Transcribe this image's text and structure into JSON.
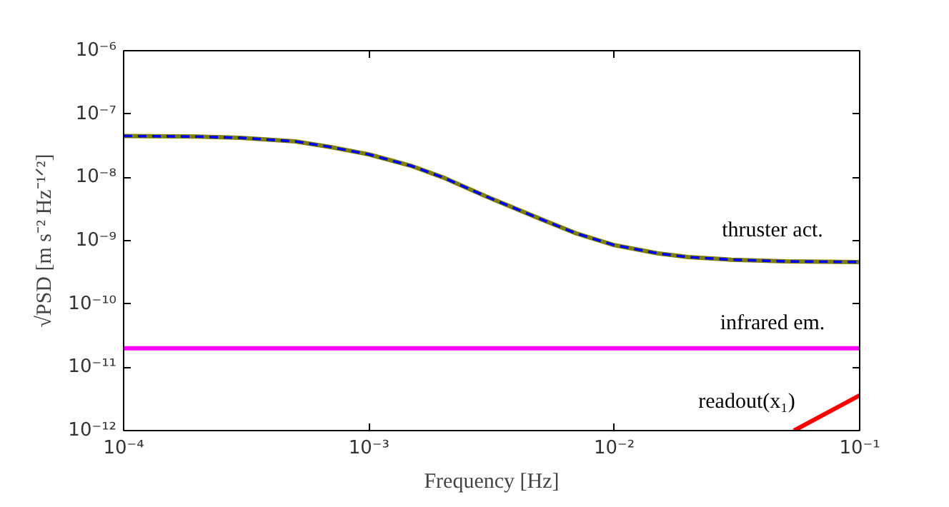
{
  "chart_data": {
    "type": "line",
    "xlabel": "Frequency [Hz]",
    "ylabel": "√PSD [m s⁻² Hz⁻¹ᐟ²]",
    "log": "xy",
    "grid": false,
    "xlim": [
      0.0001,
      0.1
    ],
    "ylim": [
      1e-12,
      1e-06
    ],
    "xticks": [
      {
        "value": 0.0001,
        "label": "10⁻⁴"
      },
      {
        "value": 0.001,
        "label": "10⁻³"
      },
      {
        "value": 0.01,
        "label": "10⁻²"
      },
      {
        "value": 0.1,
        "label": "10⁻¹"
      }
    ],
    "yticks": [
      {
        "value": 1e-12,
        "label": "10⁻¹²"
      },
      {
        "value": 1e-11,
        "label": "10⁻¹¹"
      },
      {
        "value": 1e-10,
        "label": "10⁻¹⁰"
      },
      {
        "value": 1e-09,
        "label": "10⁻⁹"
      },
      {
        "value": 1e-08,
        "label": "10⁻⁸"
      },
      {
        "value": 1e-07,
        "label": "10⁻⁷"
      },
      {
        "value": 1e-06,
        "label": "10⁻⁶"
      }
    ],
    "x": [
      0.0001,
      0.0002,
      0.0003,
      0.0005,
      0.0007,
      0.001,
      0.0015,
      0.002,
      0.003,
      0.005,
      0.007,
      0.01,
      0.015,
      0.02,
      0.03,
      0.05,
      0.1
    ],
    "series": [
      {
        "color": "#808000",
        "line_style": "solid",
        "values": [
          4.5e-08,
          4.4e-08,
          4.2e-08,
          3.7e-08,
          3e-08,
          2.3e-08,
          1.5e-08,
          1e-08,
          5e-09,
          2.2e-09,
          1.3e-09,
          8.5e-10,
          6.3e-10,
          5.5e-10,
          5e-10,
          4.7e-10,
          4.6e-10
        ]
      },
      {
        "color": "#0000ff",
        "line_style": "dashed",
        "values": [
          4.5e-08,
          4.4e-08,
          4.2e-08,
          3.7e-08,
          3e-08,
          2.3e-08,
          1.5e-08,
          1e-08,
          5e-09,
          2.2e-09,
          1.3e-09,
          8.5e-10,
          6.3e-10,
          5.5e-10,
          5e-10,
          4.7e-10,
          4.6e-10
        ]
      },
      {
        "color": "#ff00ff",
        "line_style": "solid",
        "x": [
          0.0001,
          0.1
        ],
        "values": [
          2e-11,
          2e-11
        ]
      },
      {
        "color": "#ff0000",
        "line_style": "solid",
        "x": [
          0.054,
          0.1
        ],
        "values": [
          1e-12,
          3.6e-12
        ]
      }
    ],
    "annotations": [
      "thruster act.",
      "infrared em.",
      "readout(x₁)"
    ]
  }
}
